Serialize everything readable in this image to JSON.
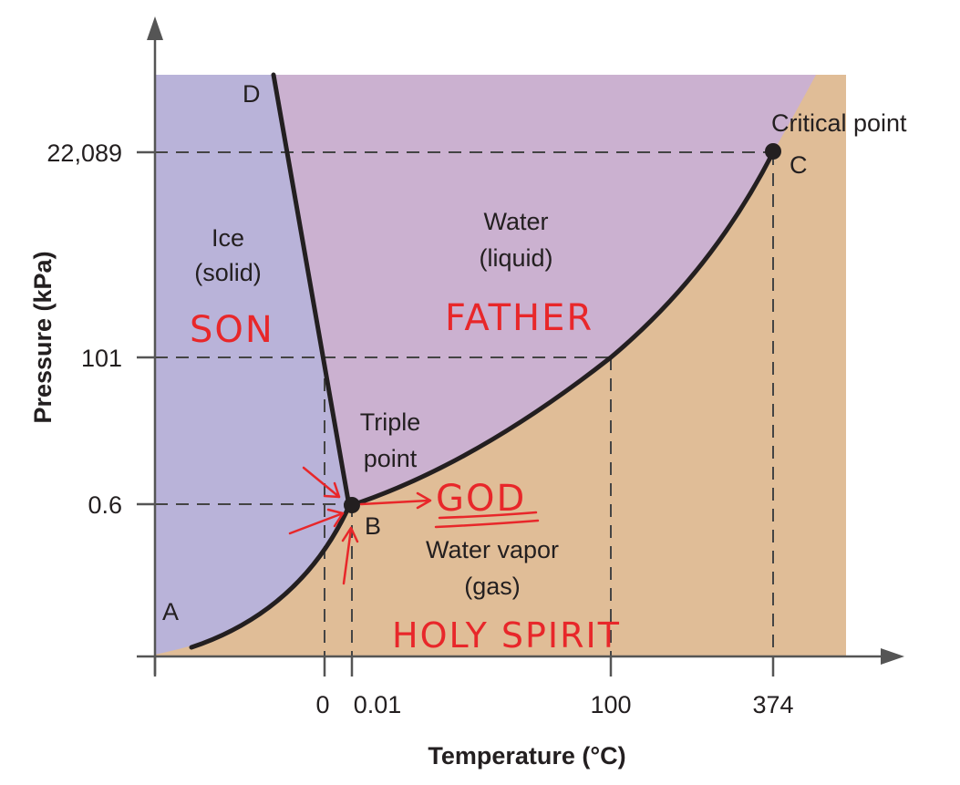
{
  "axes": {
    "x_title": "Temperature (°C)",
    "y_title": "Pressure (kPa)",
    "x_ticks": [
      "0",
      "0.01",
      "100",
      "374"
    ],
    "y_ticks": [
      "22,089",
      "101",
      "0.6"
    ]
  },
  "regions": {
    "ice_line1": "Ice",
    "ice_line2": "(solid)",
    "water_line1": "Water",
    "water_line2": "(liquid)",
    "vapor_line1": "Water vapor",
    "vapor_line2": "(gas)"
  },
  "points": {
    "A": "A",
    "B": "B",
    "C": "C",
    "D": "D",
    "triple_line1": "Triple",
    "triple_line2": "point",
    "critical": "Critical point"
  },
  "annotations": {
    "son": "SON",
    "father": "FATHER",
    "god": "GOD",
    "holy_spirit": "HOLY SPIRIT"
  },
  "colors": {
    "solid": "#b9b3d9",
    "liquid": "#cbb1d0",
    "gas": "#e0bd97",
    "curve": "#231f20",
    "handwriting": "#e8272a"
  }
}
